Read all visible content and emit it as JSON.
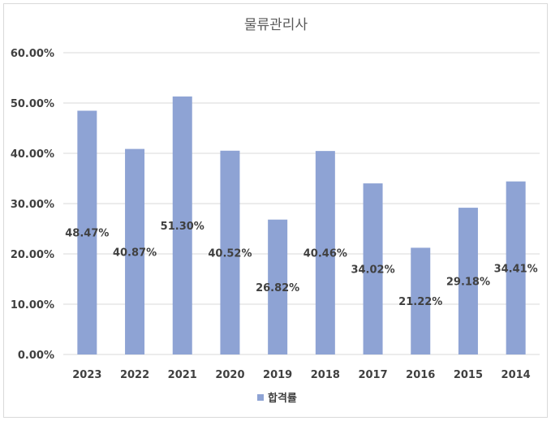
{
  "chart_data": {
    "type": "bar",
    "title": "물류관리사",
    "categories": [
      "2023",
      "2022",
      "2021",
      "2020",
      "2019",
      "2018",
      "2017",
      "2016",
      "2015",
      "2014"
    ],
    "series": [
      {
        "name": "합격률",
        "values": [
          48.47,
          40.87,
          51.3,
          40.52,
          26.82,
          40.46,
          34.02,
          21.22,
          29.18,
          34.41
        ],
        "data_labels": [
          "48.47%",
          "40.87%",
          "51.30%",
          "40.52%",
          "26.82%",
          "40.46%",
          "34.02%",
          "21.22%",
          "29.18%",
          "34.41%"
        ]
      }
    ],
    "y_ticks": [
      "0.00%",
      "10.00%",
      "20.00%",
      "30.00%",
      "40.00%",
      "50.00%",
      "60.00%"
    ],
    "ylim": [
      0,
      60
    ],
    "grid": true,
    "legend": "bottom",
    "colors": {
      "bar": "#8ea3d4",
      "grid": "#d9d9d9",
      "text": "#404040",
      "title": "#595959"
    }
  }
}
